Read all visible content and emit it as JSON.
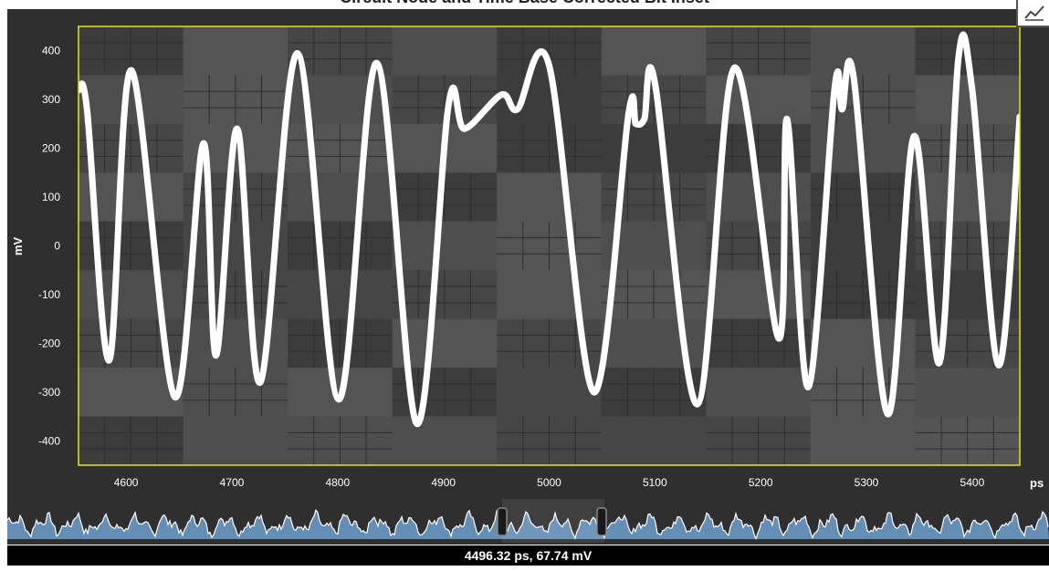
{
  "window": {
    "title": "Circuit Node and Time Base Corrected Bit Inset"
  },
  "colors": {
    "background": "#2f2f2f",
    "plot_border": "#e8e800",
    "trace": "#ffffff",
    "overview_fill": "#6f9fcf",
    "status_bg": "#000000"
  },
  "icons": {
    "corner": "chart-icon",
    "handle": "scroll-handle-icon"
  },
  "status": {
    "readout": "4496.32 ps, 67.74 mV"
  },
  "chart_data": {
    "type": "line",
    "title": "",
    "xlabel": "ps",
    "ylabel": "mV",
    "xlim": [
      4555,
      5445
    ],
    "ylim": [
      -450,
      450
    ],
    "grid": true,
    "y_ticks": [
      "400",
      "300",
      "200",
      "100",
      "0",
      "-100",
      "-200",
      "-300",
      "-400"
    ],
    "x_ticks": [
      "4600",
      "4700",
      "4800",
      "4900",
      "5000",
      "5100",
      "5200",
      "5300",
      "5400"
    ],
    "series": [
      {
        "name": "",
        "x": [
          4555,
          4563,
          4584,
          4605,
          4646,
          4673,
          4685,
          4705,
          4727,
          4762,
          4801,
          4837,
          4875,
          4905,
          4920,
          4955,
          4970,
          5000,
          5042,
          5075,
          5082,
          5090,
          5100,
          5140,
          5175,
          5217,
          5225,
          5245,
          5270,
          5277,
          5288,
          5320,
          5345,
          5369,
          5387,
          5400,
          5425,
          5445
        ],
        "y": [
          320,
          280,
          -235,
          360,
          -310,
          210,
          -225,
          240,
          -280,
          395,
          -315,
          375,
          -365,
          290,
          240,
          310,
          280,
          370,
          -300,
          270,
          250,
          260,
          335,
          -325,
          365,
          -190,
          260,
          -290,
          325,
          280,
          345,
          -345,
          225,
          -240,
          385,
          320,
          -245,
          265
        ]
      }
    ]
  }
}
